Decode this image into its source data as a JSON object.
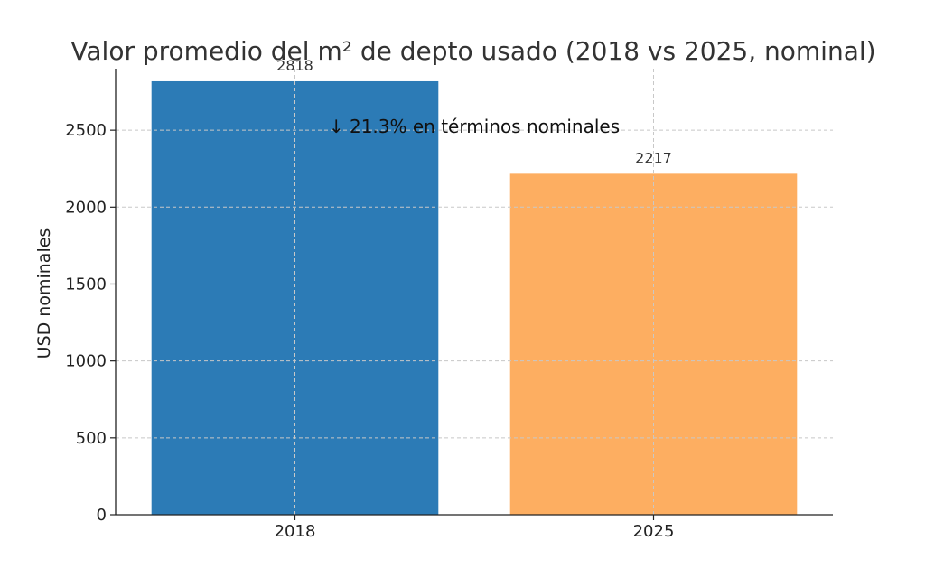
{
  "chart_data": {
    "type": "bar",
    "title": "Valor promedio del m² de depto usado (2018 vs 2025, nominal)",
    "xlabel": "",
    "ylabel": "USD nominales",
    "categories": [
      "2018",
      "2025"
    ],
    "values": [
      2818,
      2217
    ],
    "data_labels": [
      "2818",
      "2217"
    ],
    "bar_colors": [
      "#2c7bb6",
      "#fdae61"
    ],
    "ylim": [
      0,
      2900
    ],
    "yticks": [
      0,
      500,
      1000,
      1500,
      2000,
      2500
    ],
    "grid": true,
    "annotation": "↓ 21.3% en términos nominales"
  }
}
